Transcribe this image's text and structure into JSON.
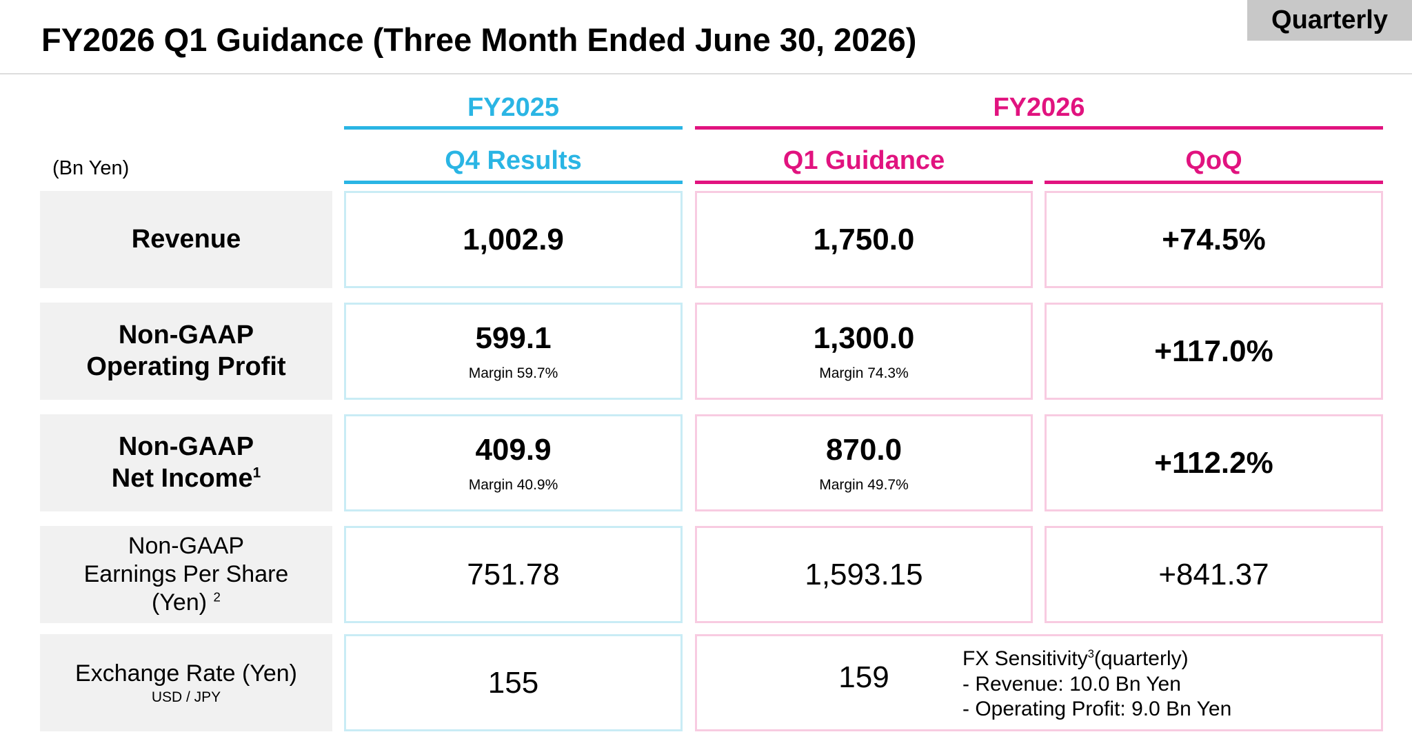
{
  "tag": "Quarterly",
  "title": "FY2026 Q1 Guidance (Three Month Ended June 30, 2026)",
  "unit": "(Bn Yen)",
  "headers": {
    "fy2025": "FY2025",
    "fy2026": "FY2026",
    "q4_results": "Q4 Results",
    "q1_guidance": "Q1 Guidance",
    "qoq": "QoQ"
  },
  "rows": {
    "revenue": {
      "label": "Revenue",
      "q4": "1,002.9",
      "q1": "1,750.0",
      "qoq": "+74.5%"
    },
    "op_profit": {
      "label_line1": "Non-GAAP",
      "label_line2": "Operating Profit",
      "q4": "599.1",
      "q4_margin": "Margin 59.7%",
      "q1": "1,300.0",
      "q1_margin": "Margin 74.3%",
      "qoq": "+117.0%"
    },
    "net_income": {
      "label_line1": "Non-GAAP",
      "label_line2": "Net Income",
      "label_sup": "1",
      "q4": "409.9",
      "q4_margin": "Margin 40.9%",
      "q1": "870.0",
      "q1_margin": "Margin 49.7%",
      "qoq": "+112.2%"
    },
    "eps": {
      "label_line1": "Non-GAAP",
      "label_line2": "Earnings Per Share",
      "label_line3": "(Yen)",
      "label_sup": "2",
      "q4": "751.78",
      "q1": "1,593.15",
      "qoq": "+841.37"
    },
    "fx": {
      "label": "Exchange Rate (Yen)",
      "sublabel": "USD / JPY",
      "q4": "155",
      "q1": "159",
      "note_title_a": "FX Sensitivity",
      "note_sup": "3",
      "note_title_b": "(quarterly)",
      "note_line1": " - Revenue: 10.0 Bn Yen",
      "note_line2": " - Operating Profit: 9.0 Bn Yen"
    }
  },
  "colors": {
    "fy2025_accent": "#2ab5e4",
    "fy2026_accent": "#e1137f",
    "label_bg": "#f1f1f1"
  }
}
